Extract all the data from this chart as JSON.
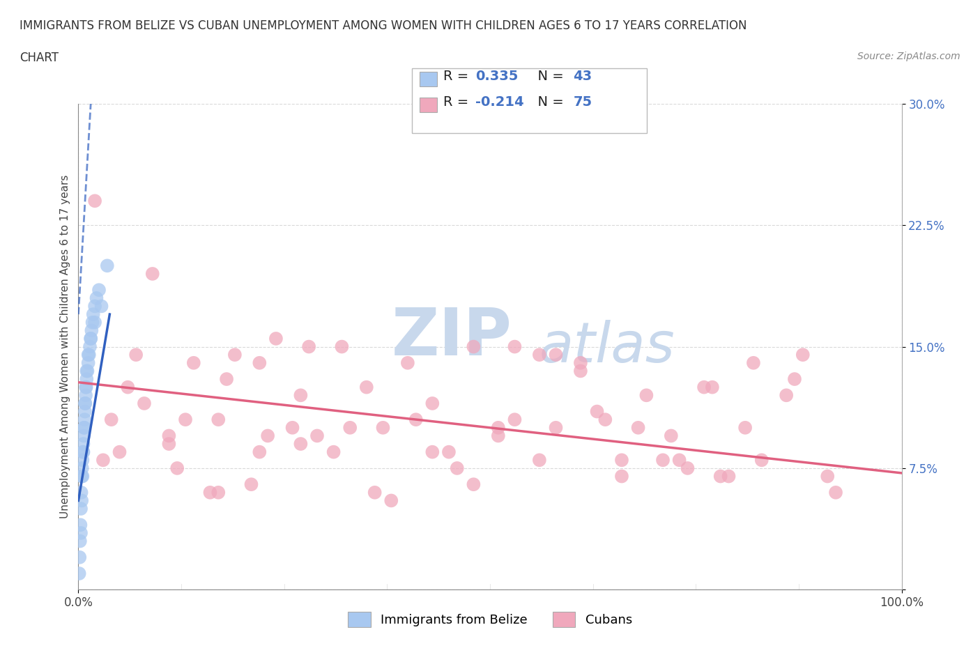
{
  "title_line1": "IMMIGRANTS FROM BELIZE VS CUBAN UNEMPLOYMENT AMONG WOMEN WITH CHILDREN AGES 6 TO 17 YEARS CORRELATION",
  "title_line2": "CHART",
  "source": "Source: ZipAtlas.com",
  "ylabel": "Unemployment Among Women with Children Ages 6 to 17 years",
  "xlim": [
    0,
    100
  ],
  "ylim": [
    0,
    30
  ],
  "yticks": [
    0,
    7.5,
    15.0,
    22.5,
    30.0
  ],
  "ytick_labels": [
    "",
    "7.5%",
    "15.0%",
    "22.5%",
    "30.0%"
  ],
  "xtick_labels": [
    "0.0%",
    "100.0%"
  ],
  "belize_color": "#a8c8f0",
  "cuban_color": "#f0a8bc",
  "belize_line_color": "#3060c0",
  "cuban_line_color": "#e06080",
  "legend_color": "#4472c4",
  "belize_R": 0.335,
  "belize_N": 43,
  "cuban_R": -0.214,
  "cuban_N": 75,
  "belize_points_x": [
    0.1,
    0.15,
    0.2,
    0.25,
    0.3,
    0.35,
    0.4,
    0.45,
    0.5,
    0.55,
    0.6,
    0.65,
    0.7,
    0.75,
    0.8,
    0.85,
    0.9,
    0.95,
    1.0,
    1.1,
    1.2,
    1.3,
    1.4,
    1.5,
    1.6,
    1.7,
    1.8,
    2.0,
    2.2,
    2.5,
    0.3,
    0.4,
    0.5,
    0.6,
    0.7,
    0.8,
    0.9,
    1.0,
    1.2,
    1.5,
    2.0,
    2.8,
    3.5
  ],
  "belize_points_y": [
    1.0,
    2.0,
    3.0,
    4.0,
    5.0,
    6.0,
    7.0,
    7.5,
    8.0,
    8.5,
    9.0,
    9.5,
    10.0,
    10.5,
    11.0,
    11.5,
    12.0,
    12.5,
    13.0,
    13.5,
    14.0,
    14.5,
    15.0,
    15.5,
    16.0,
    16.5,
    17.0,
    17.5,
    18.0,
    18.5,
    3.5,
    5.5,
    7.0,
    8.5,
    10.0,
    11.5,
    12.5,
    13.5,
    14.5,
    15.5,
    16.5,
    17.5,
    20.0
  ],
  "cuban_points_x": [
    2,
    4,
    6,
    9,
    11,
    14,
    17,
    19,
    22,
    24,
    27,
    29,
    32,
    35,
    37,
    40,
    43,
    45,
    48,
    51,
    53,
    56,
    58,
    61,
    64,
    66,
    69,
    72,
    74,
    77,
    79,
    82,
    86,
    91,
    5,
    11,
    16,
    21,
    26,
    31,
    36,
    41,
    46,
    51,
    56,
    61,
    66,
    71,
    76,
    81,
    87,
    8,
    13,
    18,
    23,
    28,
    33,
    38,
    43,
    48,
    53,
    58,
    63,
    68,
    73,
    78,
    83,
    88,
    92,
    3,
    7,
    12,
    17,
    22,
    27
  ],
  "cuban_points_y": [
    24.0,
    10.5,
    12.5,
    19.5,
    9.0,
    14.0,
    10.5,
    14.5,
    8.5,
    15.5,
    9.0,
    9.5,
    15.0,
    12.5,
    10.0,
    14.0,
    11.5,
    8.5,
    15.0,
    9.5,
    10.5,
    14.5,
    10.0,
    14.0,
    10.5,
    7.0,
    12.0,
    9.5,
    7.5,
    12.5,
    7.0,
    14.0,
    12.0,
    7.0,
    8.5,
    9.5,
    6.0,
    6.5,
    10.0,
    8.5,
    6.0,
    10.5,
    7.5,
    10.0,
    8.0,
    13.5,
    8.0,
    8.0,
    12.5,
    10.0,
    13.0,
    11.5,
    10.5,
    13.0,
    9.5,
    15.0,
    10.0,
    5.5,
    8.5,
    6.5,
    15.0,
    14.5,
    11.0,
    10.0,
    8.0,
    7.0,
    8.0,
    14.5,
    6.0,
    8.0,
    14.5,
    7.5,
    6.0,
    14.0,
    12.0
  ],
  "cuban_line_y0": 12.8,
  "cuban_line_y1": 7.2,
  "belize_line_x0": 0.0,
  "belize_line_x1": 3.8,
  "belize_line_y0": 5.5,
  "belize_line_y1": 17.0,
  "belize_dash_x0": 0.0,
  "belize_dash_x1": 1.5,
  "belize_dash_y0": 17.0,
  "belize_dash_y1": 30.0,
  "background_color": "#ffffff",
  "grid_color": "#d0d0d0",
  "watermark_zip": "ZIP",
  "watermark_atlas": "atlas",
  "watermark_color": "#c8d8ec"
}
